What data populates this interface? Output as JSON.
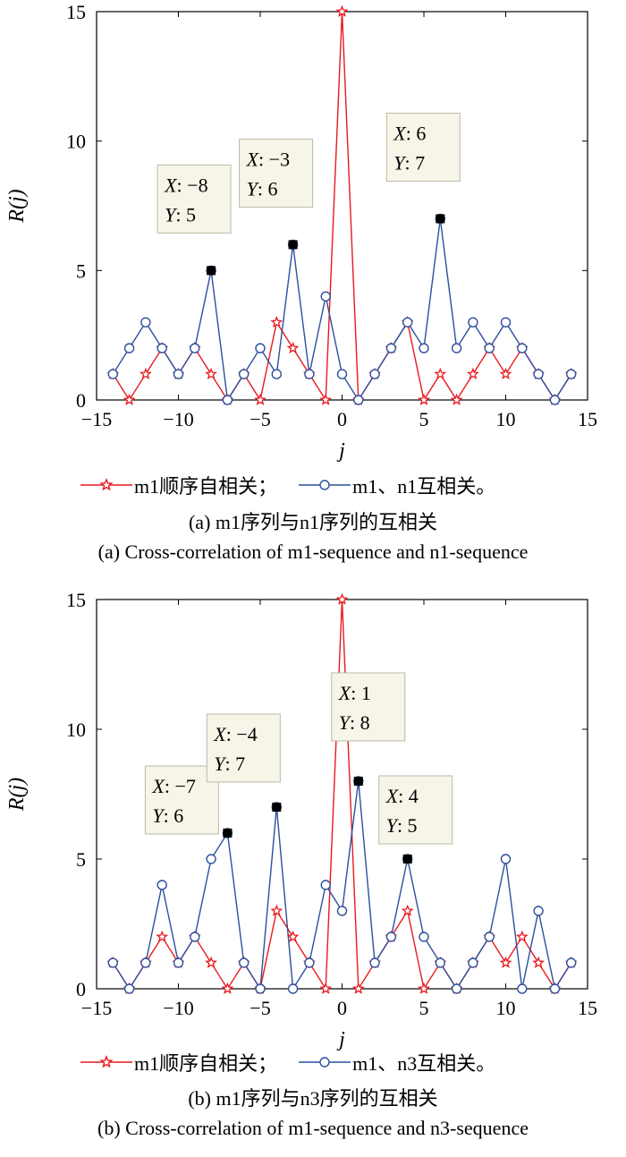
{
  "chart_data": [
    {
      "type": "line",
      "panel": "a",
      "xlabel": "j",
      "ylabel": "R(j)",
      "xlim": [
        -15,
        15
      ],
      "ylim": [
        0,
        15
      ],
      "xticks": [
        -15,
        -10,
        -5,
        0,
        5,
        10,
        15
      ],
      "yticks": [
        0,
        5,
        10,
        15
      ],
      "x": [
        -14,
        -13,
        -12,
        -11,
        -10,
        -9,
        -8,
        -7,
        -6,
        -5,
        -4,
        -3,
        -2,
        -1,
        0,
        1,
        2,
        3,
        4,
        5,
        6,
        7,
        8,
        9,
        10,
        11,
        12,
        13,
        14
      ],
      "series": [
        {
          "name": "m1顺序自相关；",
          "color": "#e8191f",
          "marker": "star",
          "values": [
            1,
            0,
            1,
            2,
            1,
            2,
            1,
            0,
            1,
            0,
            3,
            2,
            1,
            0,
            15,
            0,
            1,
            2,
            3,
            0,
            1,
            0,
            1,
            2,
            1,
            2,
            1,
            0,
            1
          ]
        },
        {
          "name": "m1、n1互相关。",
          "color": "#2d4f9e",
          "marker": "circle",
          "values": [
            1,
            2,
            3,
            2,
            1,
            2,
            5,
            0,
            1,
            2,
            1,
            6,
            1,
            4,
            1,
            0,
            1,
            2,
            3,
            2,
            7,
            2,
            3,
            2,
            3,
            2,
            1,
            0,
            1
          ]
        }
      ],
      "annotations": [
        {
          "x": -8,
          "y": 5,
          "x_text": "-8",
          "y_text": "5"
        },
        {
          "x": -3,
          "y": 6,
          "x_text": "-3",
          "y_text": "6"
        },
        {
          "x": 6,
          "y": 7,
          "x_text": "6",
          "y_text": "7"
        }
      ],
      "caption_cn": "(a) m1序列与n1序列的互相关",
      "caption_en": "(a) Cross-correlation of m1-sequence and n1-sequence"
    },
    {
      "type": "line",
      "panel": "b",
      "xlabel": "j",
      "ylabel": "R(j)",
      "xlim": [
        -15,
        15
      ],
      "ylim": [
        0,
        15
      ],
      "xticks": [
        -15,
        -10,
        -5,
        0,
        5,
        10,
        15
      ],
      "yticks": [
        0,
        5,
        10,
        15
      ],
      "x": [
        -14,
        -13,
        -12,
        -11,
        -10,
        -9,
        -8,
        -7,
        -6,
        -5,
        -4,
        -3,
        -2,
        -1,
        0,
        1,
        2,
        3,
        4,
        5,
        6,
        7,
        8,
        9,
        10,
        11,
        12,
        13,
        14
      ],
      "series": [
        {
          "name": "m1顺序自相关；",
          "color": "#e8191f",
          "marker": "star",
          "values": [
            1,
            0,
            1,
            2,
            1,
            2,
            1,
            0,
            1,
            0,
            3,
            2,
            1,
            0,
            15,
            0,
            1,
            2,
            3,
            0,
            1,
            0,
            1,
            2,
            1,
            2,
            1,
            0,
            1
          ]
        },
        {
          "name": "m1、n3互相关。",
          "color": "#2d4f9e",
          "marker": "circle",
          "values": [
            1,
            0,
            1,
            4,
            1,
            2,
            5,
            6,
            1,
            0,
            7,
            0,
            1,
            4,
            3,
            8,
            1,
            2,
            5,
            2,
            1,
            0,
            1,
            2,
            5,
            0,
            3,
            0,
            1
          ]
        }
      ],
      "annotations": [
        {
          "x": -7,
          "y": 6,
          "x_text": "-7",
          "y_text": "6"
        },
        {
          "x": -4,
          "y": 7,
          "x_text": "-4",
          "y_text": "7"
        },
        {
          "x": 1,
          "y": 8,
          "x_text": "1",
          "y_text": "8"
        },
        {
          "x": 4,
          "y": 5,
          "x_text": "4",
          "y_text": "5"
        }
      ],
      "caption_cn": "(b) m1序列与n3序列的互相关",
      "caption_en": "(b) Cross-correlation of m1-sequence and n3-sequence"
    }
  ]
}
